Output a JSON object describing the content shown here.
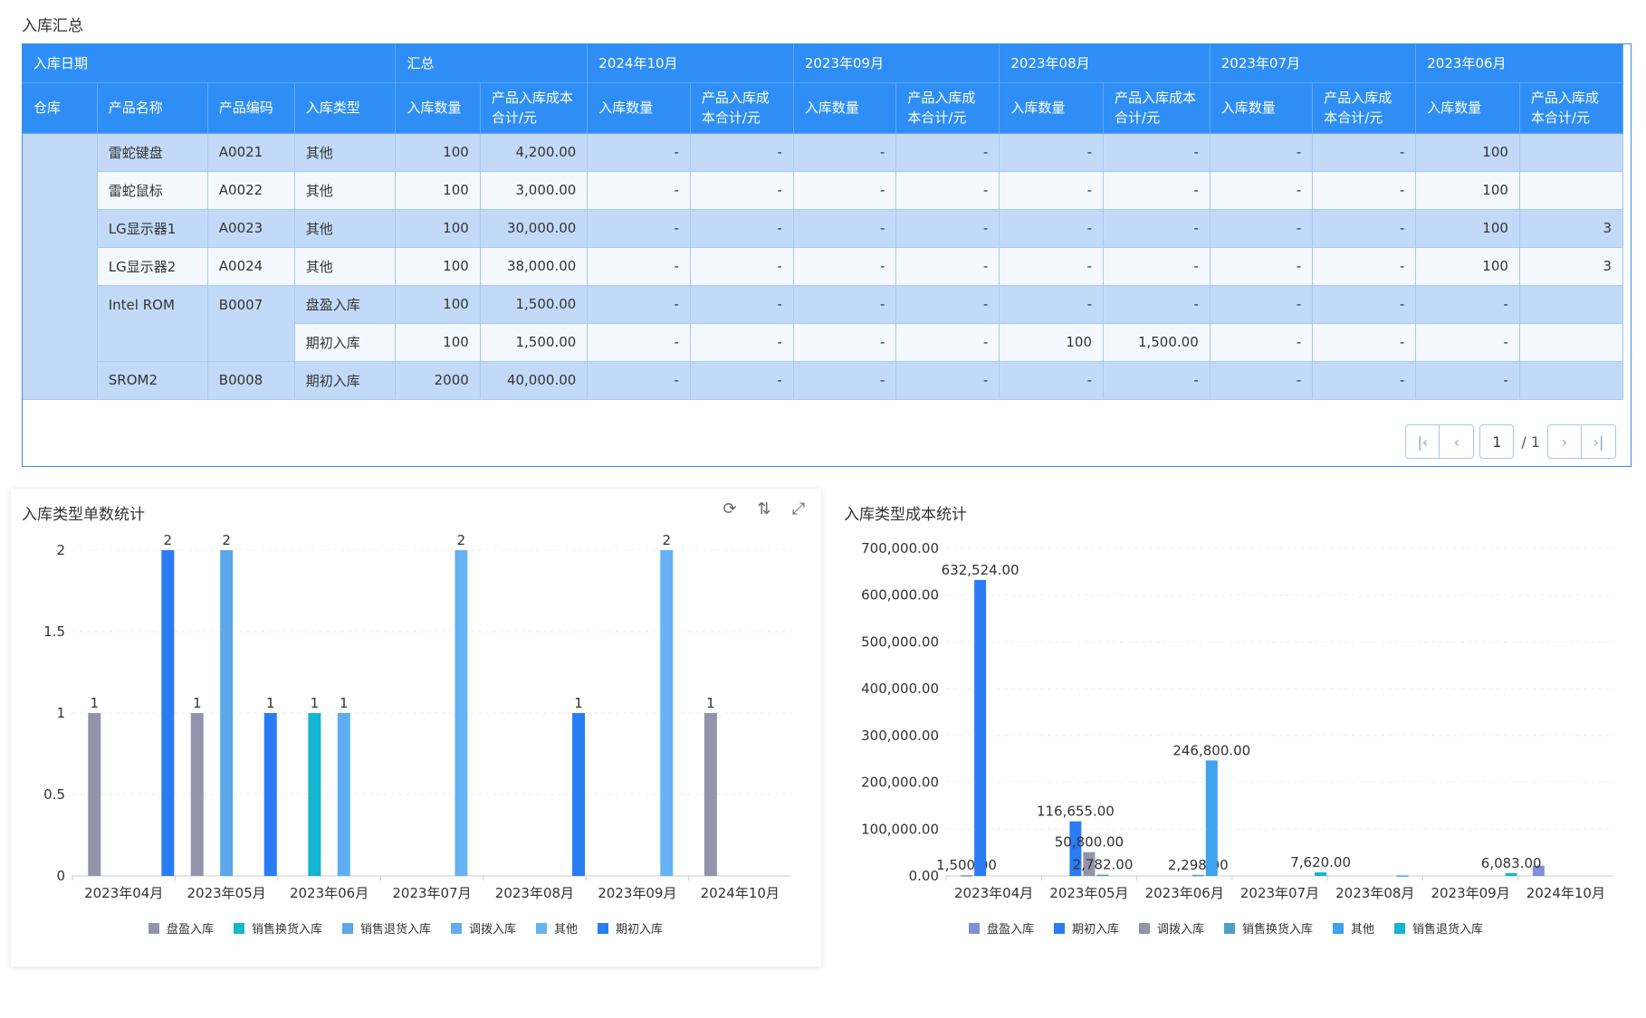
{
  "page": {
    "section_title": "入库汇总"
  },
  "table": {
    "group_headers": [
      "入库日期",
      "汇总",
      "2024年10月",
      "2023年09月",
      "2023年08月",
      "2023年07月",
      "2023年06月"
    ],
    "columns": [
      "仓库",
      "产品名称",
      "产品编码",
      "入库类型",
      "入库数量",
      "产品入库成本合计/元",
      "入库数量",
      "产品入库成本合计/元",
      "入库数量",
      "产品入库成本合计/元",
      "入库数量",
      "产品入库成本合计/元",
      "入库数量",
      "产品入库成本合计/元",
      "入库数量",
      "产品入库成本合计/元"
    ],
    "rows": [
      [
        "",
        "雷蛇键盘",
        "A0021",
        "其他",
        "100",
        "4,200.00",
        "-",
        "-",
        "-",
        "-",
        "-",
        "-",
        "-",
        "-",
        "100",
        ""
      ],
      [
        "",
        "雷蛇鼠标",
        "A0022",
        "其他",
        "100",
        "3,000.00",
        "-",
        "-",
        "-",
        "-",
        "-",
        "-",
        "-",
        "-",
        "100",
        ""
      ],
      [
        "",
        "LG显示器1",
        "A0023",
        "其他",
        "100",
        "30,000.00",
        "-",
        "-",
        "-",
        "-",
        "-",
        "-",
        "-",
        "-",
        "100",
        "3"
      ],
      [
        "",
        "LG显示器2",
        "A0024",
        "其他",
        "100",
        "38,000.00",
        "-",
        "-",
        "-",
        "-",
        "-",
        "-",
        "-",
        "-",
        "100",
        "3"
      ],
      [
        "",
        "Intel ROM",
        "B0007",
        "盘盈入库",
        "100",
        "1,500.00",
        "-",
        "-",
        "-",
        "-",
        "-",
        "-",
        "-",
        "-",
        "-",
        ""
      ],
      [
        "",
        "",
        "",
        "期初入库",
        "100",
        "1,500.00",
        "-",
        "-",
        "-",
        "-",
        "100",
        "1,500.00",
        "-",
        "-",
        "-",
        ""
      ],
      [
        "",
        "SROM2",
        "B0008",
        "期初入库",
        "2000",
        "40,000.00",
        "-",
        "-",
        "-",
        "-",
        "-",
        "-",
        "-",
        "-",
        "-",
        ""
      ]
    ]
  },
  "pager": {
    "current": "1",
    "total": "/ 1"
  },
  "chart_left": {
    "title": "入库类型单数统计",
    "tools": [
      "refresh-icon",
      "sort-icon",
      "fullscreen-icon"
    ]
  },
  "chart_right": {
    "title": "入库类型成本统计"
  },
  "chart_data": [
    {
      "type": "bar",
      "title": "入库类型单数统计",
      "categories": [
        "2023年04月",
        "2023年05月",
        "2023年06月",
        "2023年07月",
        "2023年08月",
        "2023年09月",
        "2024年10月"
      ],
      "ylim": [
        0,
        2
      ],
      "yticks": [
        "0",
        "0.5",
        "1",
        "1.5",
        "2"
      ],
      "legend_position": "bottom",
      "series": [
        {
          "name": "盘盈入库",
          "color": "#9194ab",
          "values": [
            1,
            1,
            0,
            0,
            0,
            0,
            1
          ]
        },
        {
          "name": "销售换货入库",
          "color": "#13b5d0",
          "values": [
            0,
            0,
            1,
            0,
            0,
            0,
            0
          ]
        },
        {
          "name": "销售退货入库",
          "color": "#5ba8ea",
          "values": [
            0,
            2,
            0,
            0,
            0,
            0,
            0
          ]
        },
        {
          "name": "调拨入库",
          "color": "#5eaef1",
          "values": [
            0,
            0,
            1,
            0,
            0,
            0,
            0
          ]
        },
        {
          "name": "其他",
          "color": "#66b2f5",
          "values": [
            0,
            0,
            0,
            2,
            0,
            2,
            0
          ]
        },
        {
          "name": "期初入库",
          "color": "#2a7cf5",
          "values": [
            2,
            1,
            0,
            0,
            1,
            0,
            0
          ]
        }
      ]
    },
    {
      "type": "bar",
      "title": "入库类型成本统计",
      "categories": [
        "2023年04月",
        "2023年05月",
        "2023年06月",
        "2023年07月",
        "2023年08月",
        "2023年09月",
        "2024年10月"
      ],
      "ylim": [
        0,
        700000
      ],
      "yticks": [
        "0.00",
        "100,000.00",
        "200,000.00",
        "300,000.00",
        "400,000.00",
        "500,000.00",
        "600,000.00",
        "700,000.00"
      ],
      "legend_position": "bottom",
      "series": [
        {
          "name": "盘盈入库",
          "color": "#7f8fd8",
          "values": [
            1500,
            0,
            0,
            0,
            0,
            0,
            22000
          ],
          "labels": [
            "1,500.00",
            "",
            "",
            "",
            "",
            "",
            ""
          ]
        },
        {
          "name": "期初入库",
          "color": "#2a7cf5",
          "values": [
            632524,
            116655,
            0,
            0,
            0,
            0,
            0
          ],
          "labels": [
            "632,524.00",
            "116,655.00",
            "",
            "",
            "",
            "",
            ""
          ]
        },
        {
          "name": "调拨入库",
          "color": "#9194ab",
          "values": [
            0,
            50800,
            0,
            0,
            0,
            0,
            0
          ],
          "labels": [
            "",
            "50,800.00",
            "",
            "",
            "",
            "",
            ""
          ]
        },
        {
          "name": "销售换货入库",
          "color": "#4e9ec8",
          "values": [
            0,
            2782,
            2298,
            0,
            0,
            0,
            0
          ],
          "labels": [
            "",
            "2,782.00",
            "2,298.00",
            "",
            "",
            "",
            ""
          ]
        },
        {
          "name": "其他",
          "color": "#3ea2ef",
          "values": [
            0,
            0,
            246800,
            0,
            1200,
            0,
            0
          ],
          "labels": [
            "",
            "",
            "246,800.00",
            "",
            "",
            "",
            ""
          ]
        },
        {
          "name": "销售退货入库",
          "color": "#13b5d0",
          "values": [
            0,
            0,
            0,
            7620,
            0,
            6083,
            0
          ],
          "labels": [
            "",
            "",
            "",
            "7,620.00",
            "",
            "6,083.00",
            ""
          ]
        }
      ]
    }
  ]
}
